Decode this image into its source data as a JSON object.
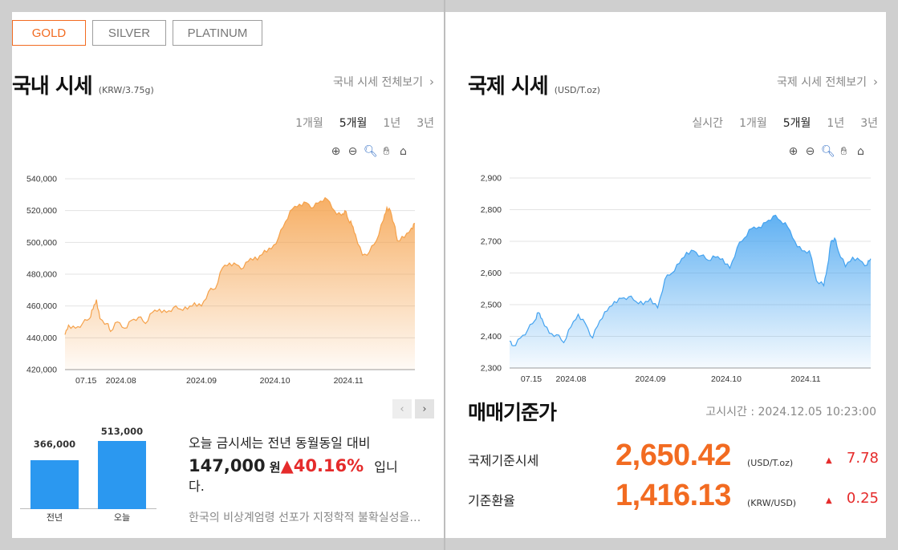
{
  "metal_tabs": [
    {
      "label": "GOLD",
      "active": true
    },
    {
      "label": "SILVER",
      "active": false
    },
    {
      "label": "PLATINUM",
      "active": false
    }
  ],
  "domestic": {
    "title": "국내 시세",
    "unit": "(KRW/3.75g)",
    "view_all": "국내 시세 전체보기",
    "periods": [
      "1개월",
      "5개월",
      "1년",
      "3년"
    ],
    "active_period": "5개월"
  },
  "international": {
    "title": "국제 시세",
    "unit": "(USD/T.oz)",
    "view_all": "국제 시세 전체보기",
    "periods": [
      "실시간",
      "1개월",
      "5개월",
      "1년",
      "3년"
    ],
    "active_period": "5개월"
  },
  "chart_tools": [
    "zoom-in-icon",
    "zoom-out-icon",
    "magnifier-icon",
    "pan-hand-icon",
    "home-icon"
  ],
  "chart_data": [
    {
      "type": "area",
      "ylim": [
        420000,
        540000
      ],
      "yticks": [
        420000,
        440000,
        460000,
        480000,
        500000,
        520000,
        540000
      ],
      "ytick_labels": [
        "420,000",
        "440,000",
        "460,000",
        "480,000",
        "500,000",
        "520,000",
        "540,000"
      ],
      "xtick_labels": [
        "07.15",
        "2024.08",
        "2024.09",
        "2024.10",
        "2024.11"
      ],
      "xtick_positions": [
        0.06,
        0.16,
        0.39,
        0.6,
        0.81
      ],
      "x": [
        0,
        0.01,
        0.03,
        0.05,
        0.07,
        0.08,
        0.09,
        0.1,
        0.12,
        0.13,
        0.15,
        0.17,
        0.19,
        0.21,
        0.23,
        0.25,
        0.27,
        0.29,
        0.31,
        0.33,
        0.35,
        0.37,
        0.39,
        0.41,
        0.43,
        0.45,
        0.47,
        0.49,
        0.51,
        0.53,
        0.55,
        0.57,
        0.59,
        0.61,
        0.63,
        0.65,
        0.67,
        0.69,
        0.71,
        0.73,
        0.75,
        0.77,
        0.79,
        0.8,
        0.81,
        0.82,
        0.83,
        0.85,
        0.87,
        0.89,
        0.91,
        0.92,
        0.93,
        0.94,
        0.95,
        0.97,
        0.99,
        1.0
      ],
      "values": [
        442000,
        448000,
        446000,
        449000,
        452000,
        458000,
        464000,
        452000,
        449000,
        444000,
        450000,
        446000,
        451000,
        453000,
        449000,
        456000,
        458000,
        456000,
        459000,
        458000,
        458000,
        462000,
        460000,
        469000,
        471000,
        484000,
        487000,
        486000,
        484000,
        490000,
        489000,
        495000,
        496000,
        503000,
        513000,
        521000,
        524000,
        525000,
        522000,
        526000,
        527000,
        520000,
        517000,
        520000,
        514000,
        511000,
        505000,
        492000,
        494000,
        501000,
        514000,
        522000,
        520000,
        512000,
        501000,
        503000,
        509000,
        512000
      ],
      "series_color": "#f5a14a"
    },
    {
      "type": "area",
      "ylim": [
        2300,
        2900
      ],
      "yticks": [
        2300,
        2400,
        2500,
        2600,
        2700,
        2800,
        2900
      ],
      "ytick_labels": [
        "2,300",
        "2,400",
        "2,500",
        "2,600",
        "2,700",
        "2,800",
        "2,900"
      ],
      "xtick_labels": [
        "07.15",
        "2024.08",
        "2024.09",
        "2024.10",
        "2024.11"
      ],
      "xtick_positions": [
        0.06,
        0.17,
        0.39,
        0.6,
        0.82
      ],
      "x": [
        0,
        0.01,
        0.03,
        0.05,
        0.07,
        0.08,
        0.09,
        0.11,
        0.13,
        0.15,
        0.17,
        0.19,
        0.21,
        0.23,
        0.25,
        0.27,
        0.29,
        0.31,
        0.33,
        0.35,
        0.37,
        0.39,
        0.41,
        0.43,
        0.45,
        0.47,
        0.49,
        0.51,
        0.53,
        0.55,
        0.57,
        0.59,
        0.61,
        0.63,
        0.65,
        0.67,
        0.69,
        0.71,
        0.73,
        0.75,
        0.77,
        0.79,
        0.81,
        0.83,
        0.85,
        0.87,
        0.88,
        0.89,
        0.9,
        0.91,
        0.93,
        0.95,
        0.97,
        0.99,
        1.0
      ],
      "values": [
        2385,
        2370,
        2395,
        2420,
        2450,
        2475,
        2455,
        2410,
        2405,
        2380,
        2430,
        2470,
        2440,
        2395,
        2450,
        2480,
        2510,
        2520,
        2525,
        2510,
        2500,
        2520,
        2490,
        2580,
        2600,
        2630,
        2665,
        2670,
        2655,
        2640,
        2650,
        2645,
        2615,
        2680,
        2710,
        2740,
        2745,
        2760,
        2780,
        2765,
        2745,
        2700,
        2670,
        2670,
        2575,
        2560,
        2620,
        2700,
        2710,
        2670,
        2620,
        2650,
        2640,
        2625,
        2645
      ],
      "series_color": "#44a3f0"
    }
  ],
  "yoy_chart": {
    "bars": [
      {
        "label": "전년",
        "value": 366000,
        "value_label": "366,000"
      },
      {
        "label": "오늘",
        "value": 513000,
        "value_label": "513,000"
      }
    ],
    "max": 540000
  },
  "summary": {
    "line1": "오늘 금시세는 전년 동월동일 대비",
    "amount": "147,000",
    "currency": "원",
    "up_arrow": "▲",
    "percent": "40.16%",
    "suffix": "입니",
    "line3": "다.",
    "news": "한국의 비상계엄령 선포가 지정학적 불확실성을 키웠다"
  },
  "standard": {
    "title": "매매기준가",
    "time": "고시시간 : 2024.12.05 10:23:00",
    "rows": [
      {
        "label": "국제기준시세",
        "value": "2,650.42",
        "unit": "(USD/T.oz)",
        "arrow": "▲",
        "change": "7.78"
      },
      {
        "label": "기준환율",
        "value": "1,416.13",
        "unit": "(KRW/USD)",
        "arrow": "▲",
        "change": "0.25"
      }
    ]
  },
  "pager": {
    "prev": "‹",
    "next": "›"
  }
}
